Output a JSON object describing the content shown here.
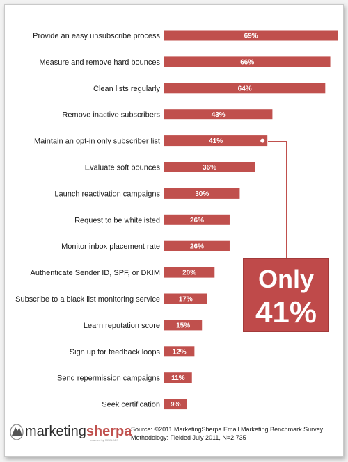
{
  "colors": {
    "bar": "#c0504d",
    "bar_highlight": "#e8a3a1",
    "callout_bg": "#bf4a4a",
    "callout_border": "#a33a3a",
    "connector": "#c0504d",
    "logo_dark": "#2b2b2b",
    "logo_accent": "#c0504d"
  },
  "chart_data": {
    "type": "bar",
    "orientation": "horizontal",
    "categories": [
      "Provide an easy unsubscribe process",
      "Measure and remove hard bounces",
      "Clean lists regularly",
      "Remove inactive subscribers",
      "Maintain an opt-in only subscriber list",
      "Evaluate soft bounces",
      "Launch reactivation campaigns",
      "Request to be whitelisted",
      "Monitor inbox placement rate",
      "Authenticate Sender ID, SPF, or DKIM",
      "Subscribe to a black list monitoring service",
      "Learn reputation score",
      "Sign up for feedback loops",
      "Send repermission campaigns",
      "Seek certification"
    ],
    "values": [
      69,
      66,
      64,
      43,
      41,
      36,
      30,
      26,
      26,
      20,
      17,
      15,
      12,
      11,
      9
    ],
    "value_labels": [
      "69%",
      "66%",
      "64%",
      "43%",
      "41%",
      "36%",
      "30%",
      "26%",
      "26%",
      "20%",
      "17%",
      "15%",
      "12%",
      "11%",
      "9%"
    ],
    "xlim": [
      0,
      70
    ],
    "highlight_index": 4,
    "grid": false,
    "legend": "none",
    "title": "",
    "xlabel": "",
    "ylabel": ""
  },
  "callout": {
    "line1": "Only",
    "line2": "41%"
  },
  "footer": {
    "logo_brand_1": "marketing",
    "logo_brand_2": "sherpa",
    "logo_tagline": "powered by MECLABS",
    "source_line1": "Source: ©2011 MarketingSherpa Email Marketing Benchmark Survey",
    "source_line2": "Methodology: Fielded July 2011, N=2,735"
  }
}
